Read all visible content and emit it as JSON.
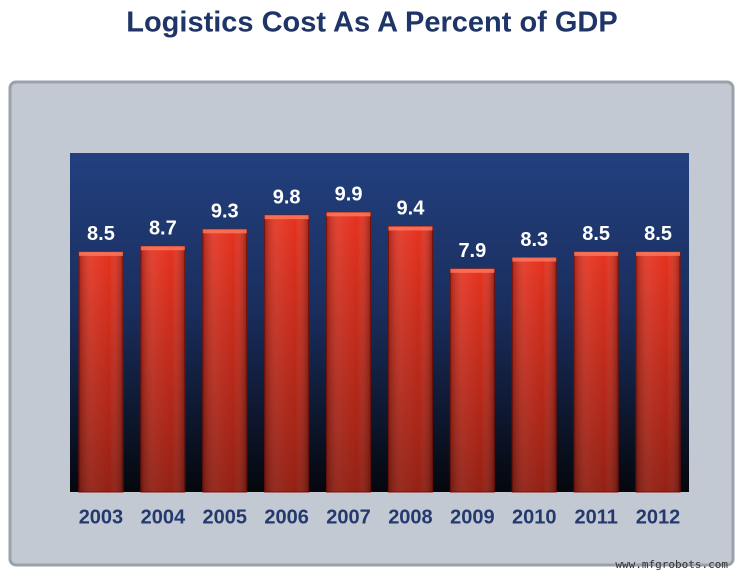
{
  "chart_data": {
    "type": "bar",
    "title": "Logistics Cost As A Percent of GDP",
    "categories": [
      "2003",
      "2004",
      "2005",
      "2006",
      "2007",
      "2008",
      "2009",
      "2010",
      "2011",
      "2012"
    ],
    "values": [
      8.5,
      8.7,
      9.3,
      9.8,
      9.9,
      9.4,
      7.9,
      8.3,
      8.5,
      8.5
    ],
    "color": "#e5321f",
    "ylim": [
      0,
      12
    ],
    "watermark": "www.mfgrobots.com"
  }
}
